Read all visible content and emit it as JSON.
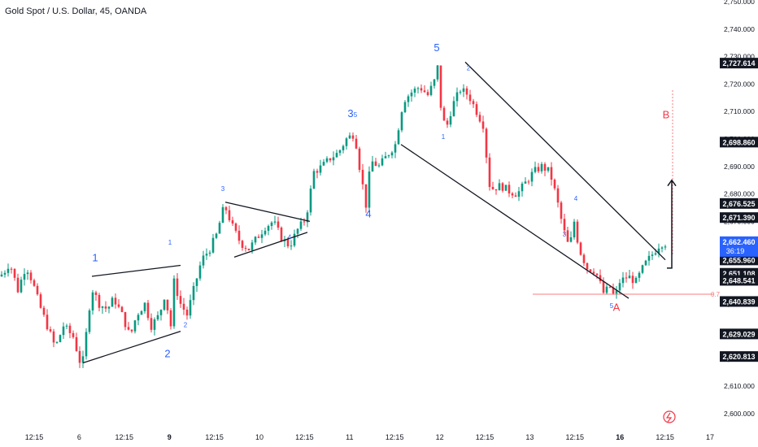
{
  "header": {
    "title": "Gold Spot / U.S. Dollar, 45, OANDA"
  },
  "colors": {
    "up": "#089981",
    "down": "#f23645",
    "wave_label": "#2962ff",
    "ab_label": "#f23645",
    "trendline": "#131722",
    "price_badge": "#131722",
    "current_badge": "#2962ff",
    "fib_line": "#f77c80",
    "grid_text": "#131722"
  },
  "chart_data": {
    "type": "candlestick",
    "title": "Gold Spot / U.S. Dollar, 45, OANDA",
    "ylim": [
      2597,
      2750
    ],
    "y_ticks": [
      "2,600.000",
      "2,610.000",
      "2,620.000",
      "2,630.000",
      "2,640.000",
      "2,650.000",
      "2,660.000",
      "2,670.000",
      "2,680.000",
      "2,690.000",
      "2,700.000",
      "2,710.000",
      "2,720.000",
      "2,730.000",
      "2,740.000",
      "2,750.000"
    ],
    "x_ticks": [
      "12:15",
      "6",
      "12:15",
      "9",
      "12:15",
      "10",
      "12:15",
      "11",
      "12:15",
      "12",
      "12:15",
      "13",
      "12:15",
      "16",
      "12:15",
      "17"
    ],
    "bold_x_ticks": [
      "9",
      "16"
    ],
    "price_badges": [
      "2,727.614",
      "2,698.860",
      "2,676.525",
      "2,671.390",
      "2,655.960",
      "2,651.108",
      "2,648.541",
      "2,640.839",
      "2,629.029",
      "2,620.813"
    ],
    "current_price": {
      "price": "2,662.460",
      "countdown": "36:19"
    },
    "fib_label": "0.7",
    "close_path": [
      [
        0,
        2650
      ],
      [
        6,
        2652
      ],
      [
        12,
        2655
      ],
      [
        22,
        2645
      ],
      [
        32,
        2654
      ],
      [
        40,
        2648
      ],
      [
        48,
        2640
      ],
      [
        58,
        2632
      ],
      [
        68,
        2624
      ],
      [
        78,
        2632
      ],
      [
        90,
        2628
      ],
      [
        100,
        2617
      ],
      [
        104,
        2622
      ],
      [
        108,
        2636
      ],
      [
        114,
        2645
      ],
      [
        122,
        2640
      ],
      [
        132,
        2638
      ],
      [
        140,
        2642
      ],
      [
        150,
        2636
      ],
      [
        160,
        2628
      ],
      [
        168,
        2636
      ],
      [
        178,
        2640
      ],
      [
        186,
        2632
      ],
      [
        196,
        2636
      ],
      [
        204,
        2645
      ],
      [
        209,
        2628
      ],
      [
        214,
        2648
      ],
      [
        222,
        2640
      ],
      [
        230,
        2636
      ],
      [
        238,
        2645
      ],
      [
        248,
        2656
      ],
      [
        258,
        2660
      ],
      [
        266,
        2665
      ],
      [
        276,
        2676
      ],
      [
        286,
        2668
      ],
      [
        296,
        2662
      ],
      [
        306,
        2660
      ],
      [
        316,
        2664
      ],
      [
        326,
        2668
      ],
      [
        336,
        2670
      ],
      [
        346,
        2664
      ],
      [
        356,
        2661
      ],
      [
        366,
        2667
      ],
      [
        376,
        2671
      ],
      [
        386,
        2688
      ],
      [
        396,
        2690
      ],
      [
        406,
        2693
      ],
      [
        416,
        2695
      ],
      [
        426,
        2700
      ],
      [
        436,
        2702
      ],
      [
        442,
        2690
      ],
      [
        450,
        2676
      ],
      [
        456,
        2692
      ],
      [
        466,
        2690
      ],
      [
        476,
        2694
      ],
      [
        486,
        2698
      ],
      [
        496,
        2714
      ],
      [
        506,
        2717
      ],
      [
        516,
        2719
      ],
      [
        526,
        2716
      ],
      [
        534,
        2721
      ],
      [
        538,
        2726
      ],
      [
        542,
        2712
      ],
      [
        548,
        2703
      ],
      [
        556,
        2712
      ],
      [
        566,
        2718
      ],
      [
        576,
        2716
      ],
      [
        586,
        2710
      ],
      [
        596,
        2704
      ],
      [
        600,
        2684
      ],
      [
        606,
        2682
      ],
      [
        616,
        2683
      ],
      [
        626,
        2681
      ],
      [
        636,
        2680
      ],
      [
        646,
        2684
      ],
      [
        656,
        2688
      ],
      [
        666,
        2690
      ],
      [
        676,
        2688
      ],
      [
        684,
        2679
      ],
      [
        692,
        2668
      ],
      [
        700,
        2660
      ],
      [
        706,
        2670
      ],
      [
        712,
        2660
      ],
      [
        722,
        2653
      ],
      [
        732,
        2652
      ],
      [
        742,
        2644
      ],
      [
        750,
        2646
      ],
      [
        756,
        2642
      ],
      [
        762,
        2648
      ],
      [
        772,
        2650
      ],
      [
        782,
        2648
      ],
      [
        792,
        2654
      ],
      [
        802,
        2658
      ],
      [
        812,
        2662
      ],
      [
        820,
        2662
      ]
    ],
    "wave_labels": [
      {
        "text": "1",
        "x": 117,
        "price": 2655.5,
        "size": 13,
        "color": "wave"
      },
      {
        "text": "2",
        "x": 206,
        "price": 2620.5,
        "size": 13,
        "color": "wave"
      },
      {
        "text": "1",
        "x": 209,
        "price": 2661.5,
        "size": 8,
        "color": "wave"
      },
      {
        "text": "2",
        "x": 228,
        "price": 2631.5,
        "size": 8,
        "color": "wave"
      },
      {
        "text": "3",
        "x": 274,
        "price": 2681,
        "size": 8,
        "color": "wave"
      },
      {
        "text": "4",
        "x": 356,
        "price": 2663.5,
        "size": 8,
        "color": "wave"
      },
      {
        "text": "3",
        "x": 431,
        "price": 2708,
        "size": 13,
        "color": "wave"
      },
      {
        "text": "5",
        "x": 437,
        "price": 2708,
        "size": 8,
        "color": "wave"
      },
      {
        "text": "4",
        "x": 453,
        "price": 2671.5,
        "size": 13,
        "color": "wave"
      },
      {
        "text": "5",
        "x": 537,
        "price": 2732,
        "size": 13,
        "color": "wave"
      },
      {
        "text": "2",
        "x": 576,
        "price": 2725,
        "size": 8,
        "color": "wave"
      },
      {
        "text": "1",
        "x": 545,
        "price": 2700,
        "size": 8,
        "color": "wave"
      },
      {
        "text": "4",
        "x": 708,
        "price": 2677.5,
        "size": 8,
        "color": "wave"
      },
      {
        "text": "3",
        "x": 694,
        "price": 2664.5,
        "size": 8,
        "color": "wave"
      },
      {
        "text": "5",
        "x": 752,
        "price": 2638.5,
        "size": 8,
        "color": "wave"
      },
      {
        "text": "A",
        "x": 758,
        "price": 2637.5,
        "size": 13,
        "color": "ab"
      },
      {
        "text": "B",
        "x": 819,
        "price": 2707.5,
        "size": 13,
        "color": "ab"
      }
    ],
    "trend_lines": [
      {
        "from": [
          113,
          2650
        ],
        "to": [
          222,
          2654
        ]
      },
      {
        "from": [
          102,
          2618.5
        ],
        "to": [
          222,
          2630
        ]
      },
      {
        "from": [
          277,
          2677
        ],
        "to": [
          381,
          2670
        ]
      },
      {
        "from": [
          288,
          2657
        ],
        "to": [
          378,
          2666
        ]
      },
      {
        "from": [
          572,
          2728
        ],
        "to": [
          818,
          2656
        ]
      },
      {
        "from": [
          493,
          2698
        ],
        "to": [
          773,
          2642
        ]
      }
    ],
    "projection": {
      "dotted": {
        "from": [
          827,
          2658
        ],
        "to": [
          827,
          2718
        ]
      },
      "arrow": {
        "from": [
          820,
          2653
        ],
        "to": [
          826,
          2685
        ]
      }
    },
    "fib_line": {
      "x_from": 655,
      "x_to": 878,
      "price": 2643.5
    }
  }
}
